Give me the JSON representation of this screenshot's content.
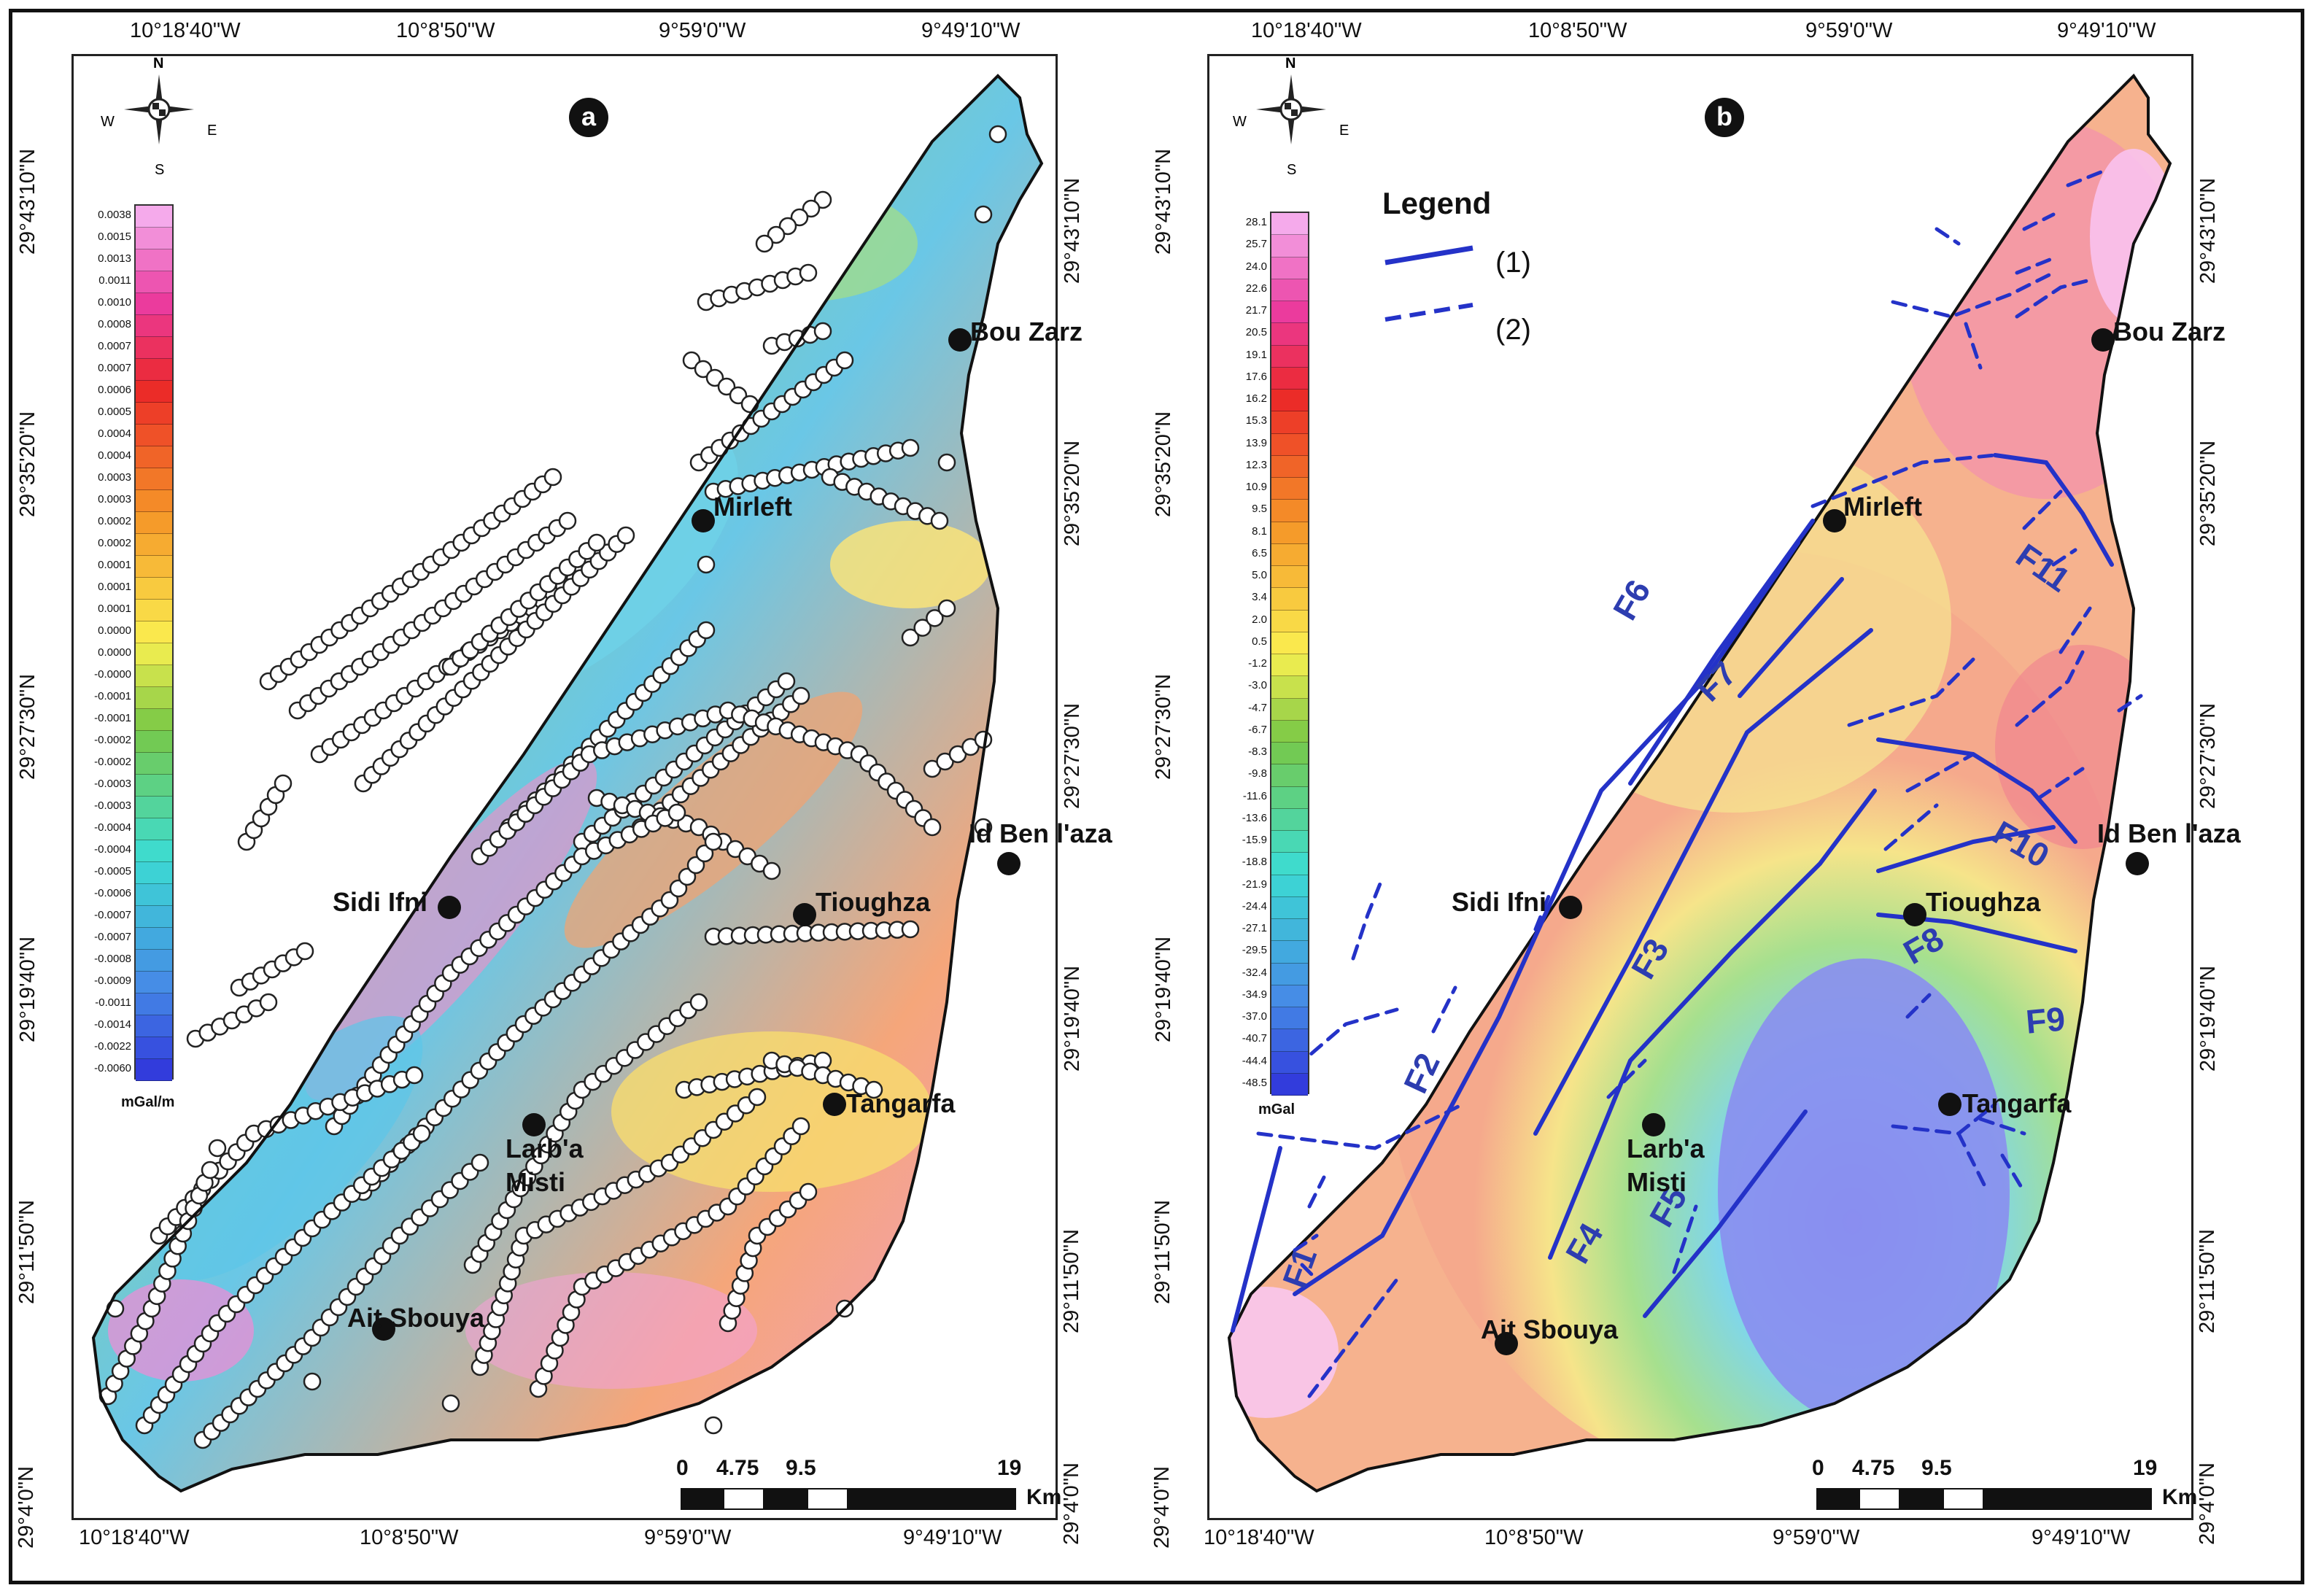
{
  "panel_a": {
    "label": "a",
    "colorbar_values": [
      "0.0038",
      "0.0015",
      "0.0013",
      "0.0011",
      "0.0010",
      "0.0008",
      "0.0007",
      "0.0007",
      "0.0006",
      "0.0005",
      "0.0004",
      "0.0004",
      "0.0003",
      "0.0003",
      "0.0002",
      "0.0002",
      "0.0001",
      "0.0001",
      "0.0001",
      "0.0000",
      "0.0000",
      "-0.0000",
      "-0.0001",
      "-0.0001",
      "-0.0002",
      "-0.0002",
      "-0.0003",
      "-0.0003",
      "-0.0004",
      "-0.0004",
      "-0.0005",
      "-0.0006",
      "-0.0007",
      "-0.0007",
      "-0.0008",
      "-0.0009",
      "-0.0011",
      "-0.0014",
      "-0.0022",
      "-0.0060"
    ],
    "colorbar_unit": "mGal/m"
  },
  "panel_b": {
    "label": "b",
    "colorbar_values": [
      "28.1",
      "25.7",
      "24.0",
      "22.6",
      "21.7",
      "20.5",
      "19.1",
      "17.6",
      "16.2",
      "15.3",
      "13.9",
      "12.3",
      "10.9",
      "9.5",
      "8.1",
      "6.5",
      "5.0",
      "3.4",
      "2.0",
      "0.5",
      "-1.2",
      "-3.0",
      "-4.7",
      "-6.7",
      "-8.3",
      "-9.8",
      "-11.6",
      "-13.6",
      "-15.9",
      "-18.8",
      "-21.9",
      "-24.4",
      "-27.1",
      "-29.5",
      "-32.4",
      "-34.9",
      "-37.0",
      "-40.7",
      "-44.4",
      "-48.5"
    ],
    "colorbar_unit": "mGal",
    "legend": {
      "title": "Legend",
      "item1": "(1)",
      "item2": "(2)"
    },
    "faults": [
      "F1",
      "F2",
      "F3",
      "F4",
      "F5",
      "F6",
      "F7",
      "F8",
      "F9",
      "F10",
      "F11"
    ]
  },
  "lon_ticks": [
    "10°18'40\"W",
    "10°8'50\"W",
    "9°59'0\"W",
    "9°49'10\"W"
  ],
  "lat_ticks": [
    "29°43'10\"N",
    "29°35'20\"N",
    "29°27'30\"N",
    "29°19'40\"N",
    "29°11'50\"N",
    "29°4'0\"N"
  ],
  "compass": {
    "n": "N",
    "s": "S",
    "e": "E",
    "w": "W"
  },
  "places": {
    "bou_zarz": "Bou Zarz",
    "mirleft": "Mirleft",
    "id_ben": "Id Ben l'aza",
    "sidi_ifni": "Sidi Ifni",
    "tioughza": "Tioughza",
    "tangarfa": "Tangarfa",
    "larba": "Larb'a",
    "misti": "Misti",
    "ait_sbouya": "Ait Sbouya"
  },
  "scale": {
    "labels": [
      "0",
      "4.75",
      "9.5",
      "19"
    ],
    "unit": "Km"
  },
  "colors": {
    "fault_line": "#2432c8",
    "border": "#111111"
  }
}
